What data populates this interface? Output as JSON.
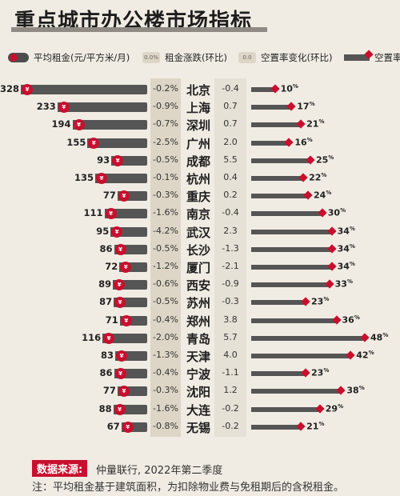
{
  "title": "重点城市办公楼市场指标",
  "legend": {
    "rent": "平均租金",
    "rent_unit": "(元/平方米/月)",
    "rent_change": "租金涨跌",
    "rent_change_paren": "(环比)",
    "rent_change_icon_text": "0.0%",
    "vacancy_change": "空置率变化",
    "vacancy_change_paren": "(环比)",
    "vacancy_change_icon_text": "0.0",
    "vacancy": "空置率"
  },
  "colors": {
    "accent_red": "#c8102e",
    "bar_gray": "#555555",
    "background": "#f1ece3"
  },
  "chart_data": {
    "type": "bar",
    "title": "重点城市办公楼市场指标",
    "categories": [
      "北京",
      "上海",
      "深圳",
      "广州",
      "成都",
      "杭州",
      "重庆",
      "南京",
      "武汉",
      "长沙",
      "厦门",
      "西安",
      "苏州",
      "郑州",
      "青岛",
      "天津",
      "宁波",
      "沈阳",
      "大连",
      "无锡"
    ],
    "series": [
      {
        "name": "平均租金(元/平方米/月)",
        "values": [
          328,
          233,
          194,
          155,
          93,
          135,
          77,
          111,
          95,
          86,
          72,
          89,
          87,
          71,
          116,
          83,
          86,
          77,
          88,
          67
        ]
      },
      {
        "name": "租金涨跌(环比)",
        "labels": [
          "-0.2%",
          "-0.9%",
          "-0.7%",
          "-2.5%",
          "-0.5%",
          "-0.1%",
          "-0.3%",
          "-1.6%",
          "-4.2%",
          "-0.5%",
          "-1.2%",
          "-0.6%",
          "-0.5%",
          "-0.4%",
          "-2.0%",
          "-1.3%",
          "-0.4%",
          "-0.3%",
          "-1.6%",
          "-0.8%"
        ],
        "values": [
          -0.2,
          -0.9,
          -0.7,
          -2.5,
          -0.5,
          -0.1,
          -0.3,
          -1.6,
          -4.2,
          -0.5,
          -1.2,
          -0.6,
          -0.5,
          -0.4,
          -2.0,
          -1.3,
          -0.4,
          -0.3,
          -1.6,
          -0.8
        ]
      },
      {
        "name": "空置率变化(环比)",
        "labels": [
          "-0.4",
          "0.7",
          "0.7",
          "2.0",
          "5.5",
          "0.4",
          "0.2",
          "-0.4",
          "2.3",
          "-1.3",
          "-2.1",
          "-0.9",
          "-0.3",
          "3.8",
          "5.7",
          "4.0",
          "-1.1",
          "1.2",
          "-0.2",
          "-0.2"
        ],
        "values": [
          -0.4,
          0.7,
          0.7,
          2.0,
          5.5,
          0.4,
          0.2,
          -0.4,
          2.3,
          -1.3,
          -2.1,
          -0.9,
          -0.3,
          3.8,
          5.7,
          4.0,
          -1.1,
          1.2,
          -0.2,
          -0.2
        ]
      },
      {
        "name": "空置率",
        "values": [
          10,
          17,
          21,
          16,
          25,
          22,
          24,
          30,
          34,
          34,
          34,
          33,
          23,
          36,
          48,
          42,
          23,
          38,
          29,
          21
        ],
        "unit": "%"
      }
    ]
  },
  "source": {
    "label": "数据来源:",
    "text": "仲量联行, 2022年第二季度"
  },
  "note": "注：平均租金基于建筑面积，为扣除物业费与免租期后的含税租金。"
}
